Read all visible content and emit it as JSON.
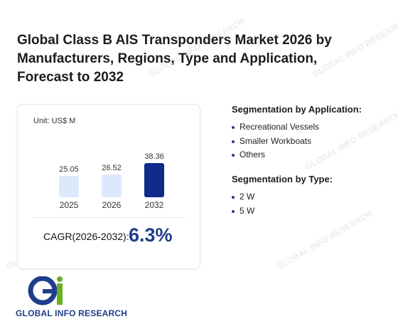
{
  "title": "Global Class B AIS Transponders Market 2026 by Manufacturers, Regions, Type and Application, Forecast to 2032",
  "chart_data": {
    "type": "bar",
    "unit_label": "Unit: US$ M",
    "categories": [
      "2025",
      "2026",
      "2032"
    ],
    "values": [
      25.05,
      26.52,
      38.36
    ],
    "value_labels": [
      "25.05",
      "26.52",
      "38.36"
    ],
    "colors": [
      "#dbe9fb",
      "#dbe9fb",
      "#0e2a8a"
    ],
    "ylim": [
      0,
      40
    ]
  },
  "cagr": {
    "label": "CAGR(2026-2032):",
    "value": "6.3%"
  },
  "segmentation_application": {
    "title": "Segmentation by Application:",
    "items": [
      "Recreational Vessels",
      "Smaller Workboats",
      "Others"
    ]
  },
  "segmentation_type": {
    "title": "Segmentation by Type:",
    "items": [
      "2 W",
      "5 W"
    ]
  },
  "logo": {
    "text": "GLOBAL INFO RESEARCH"
  }
}
